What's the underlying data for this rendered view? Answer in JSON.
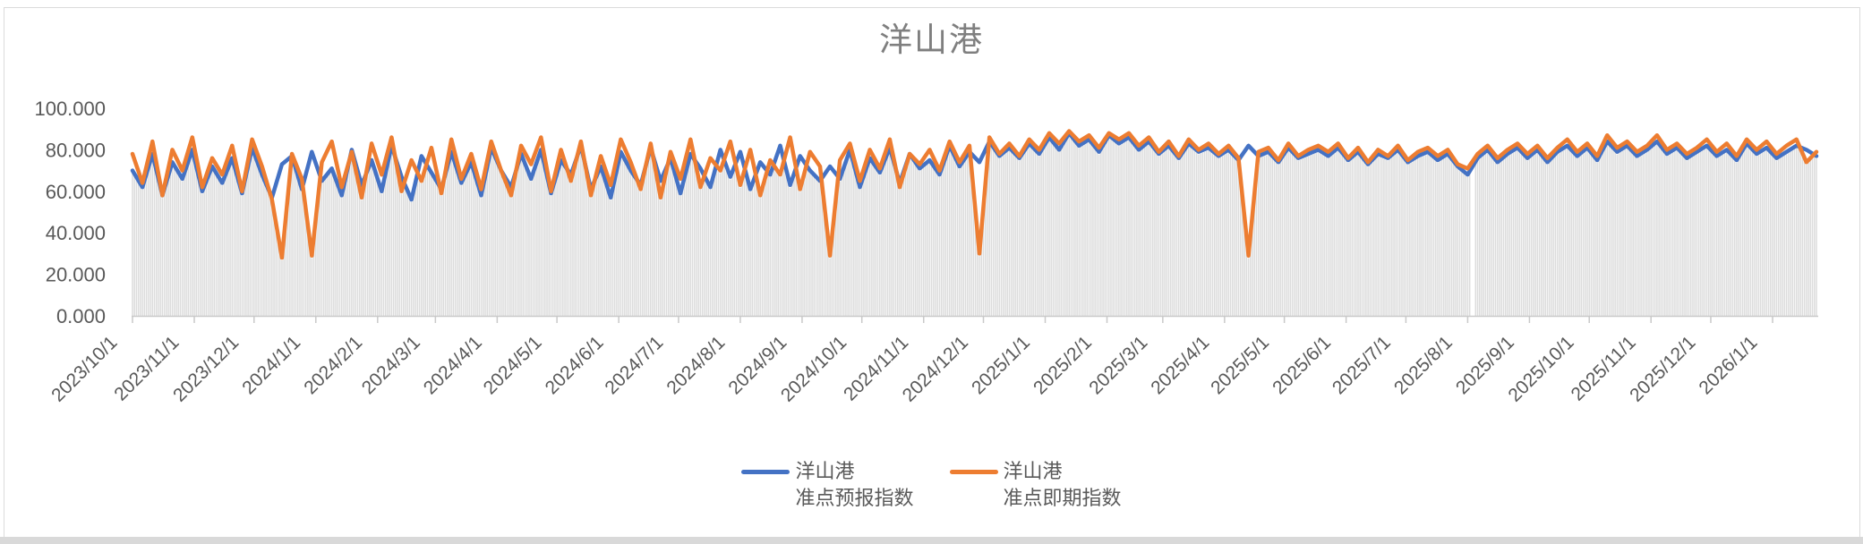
{
  "window": {
    "background_color": "#FFFFFF",
    "frame_border_color": "#DBDBDB",
    "bottom_strip_color": "#D9D9D9"
  },
  "chart": {
    "title": "洋山港",
    "title_color": "#7F7F7F",
    "axis_text_color": "#595959",
    "axis_line_color": "#C9C9C9"
  },
  "legend": {
    "items": [
      {
        "line1": "洋山港",
        "line2": "准点预报指数",
        "color": "#4472C4"
      },
      {
        "line1": "洋山港",
        "line2": "准点即期指数",
        "color": "#ED7D31"
      }
    ]
  },
  "chart_data": {
    "type": "line",
    "title": "洋山港",
    "grid": false,
    "legend_position": "bottom",
    "x_axis": {
      "start_date": "2023/10/1",
      "step_days": 5,
      "tick_labels": [
        "2023/10/1",
        "2023/11/1",
        "2023/12/1",
        "2024/1/1",
        "2024/2/1",
        "2024/3/1",
        "2024/4/1",
        "2024/5/1",
        "2024/6/1",
        "2024/7/1",
        "2024/8/1",
        "2024/9/1",
        "2024/10/1",
        "2024/11/1",
        "2024/12/1",
        "2025/1/1",
        "2025/2/1",
        "2025/3/1",
        "2025/4/1",
        "2025/5/1",
        "2025/6/1",
        "2025/7/1",
        "2025/8/1",
        "2025/9/1",
        "2025/10/1",
        "2025/11/1",
        "2025/12/1",
        "2026/1/1"
      ]
    },
    "y_axis": {
      "range": [
        0,
        100
      ],
      "ticks": [
        0,
        20,
        40,
        60,
        80,
        100
      ],
      "tick_labels": [
        "0.000",
        "20.000",
        "40.000",
        "60.000",
        "80.000",
        "100.000"
      ]
    },
    "background_bars": {
      "color": "#DCDCDC",
      "derived_from": "min of the two series",
      "gap_days": [
        "2025/8/3",
        "2025/8/4"
      ]
    },
    "series": [
      {
        "name": "洋山港准点预报指数",
        "color": "#4472C4",
        "values": [
          70,
          62,
          78,
          58,
          74,
          66,
          80,
          60,
          72,
          64,
          76,
          59,
          81,
          68,
          57,
          73,
          77,
          61,
          79,
          65,
          71,
          58,
          80,
          63,
          75,
          60,
          82,
          67,
          56,
          77,
          69,
          61,
          79,
          64,
          74,
          58,
          81,
          70,
          62,
          78,
          66,
          80,
          59,
          75,
          68,
          82,
          61,
          72,
          57,
          79,
          70,
          63,
          81,
          65,
          76,
          59,
          78,
          71,
          62,
          80,
          67,
          79,
          61,
          74,
          68,
          82,
          63,
          77,
          70,
          65,
          72,
          66,
          80,
          62,
          76,
          69,
          81,
          64,
          78,
          71,
          75,
          68,
          82,
          72,
          79,
          74,
          84,
          77,
          81,
          76,
          83,
          78,
          86,
          80,
          88,
          82,
          85,
          79,
          87,
          83,
          86,
          80,
          84,
          78,
          82,
          76,
          83,
          79,
          81,
          77,
          80,
          75,
          82,
          77,
          79,
          74,
          81,
          76,
          78,
          80,
          77,
          81,
          75,
          79,
          73,
          78,
          76,
          80,
          74,
          77,
          79,
          75,
          78,
          72,
          68,
          76,
          80,
          74,
          78,
          81,
          76,
          80,
          74,
          79,
          82,
          77,
          81,
          75,
          84,
          79,
          82,
          77,
          80,
          84,
          78,
          81,
          76,
          79,
          82,
          77,
          80,
          75,
          83,
          78,
          81,
          76,
          79,
          82,
          80,
          77
        ]
      },
      {
        "name": "洋山港准点即期指数",
        "color": "#ED7D31",
        "values": [
          78,
          64,
          84,
          58,
          80,
          70,
          86,
          62,
          76,
          68,
          82,
          60,
          85,
          72,
          56,
          28,
          78,
          66,
          29,
          74,
          84,
          62,
          79,
          57,
          83,
          68,
          86,
          60,
          75,
          65,
          81,
          59,
          85,
          66,
          78,
          61,
          84,
          70,
          58,
          82,
          73,
          86,
          60,
          80,
          65,
          84,
          58,
          77,
          63,
          85,
          74,
          61,
          83,
          57,
          79,
          66,
          85,
          62,
          76,
          70,
          84,
          63,
          80,
          58,
          75,
          68,
          86,
          61,
          79,
          72,
          29,
          75,
          83,
          65,
          80,
          71,
          85,
          62,
          78,
          73,
          80,
          70,
          84,
          74,
          82,
          30,
          86,
          78,
          83,
          77,
          85,
          80,
          88,
          83,
          89,
          84,
          87,
          81,
          88,
          85,
          88,
          82,
          86,
          79,
          84,
          77,
          85,
          80,
          83,
          78,
          82,
          76,
          29,
          79,
          81,
          75,
          83,
          77,
          80,
          82,
          79,
          83,
          76,
          81,
          74,
          80,
          77,
          82,
          75,
          79,
          81,
          77,
          80,
          73,
          71,
          78,
          82,
          76,
          80,
          83,
          78,
          82,
          76,
          81,
          85,
          79,
          83,
          77,
          87,
          81,
          84,
          79,
          82,
          87,
          80,
          83,
          78,
          81,
          85,
          79,
          83,
          77,
          85,
          80,
          84,
          78,
          82,
          85,
          74,
          79
        ]
      }
    ]
  }
}
